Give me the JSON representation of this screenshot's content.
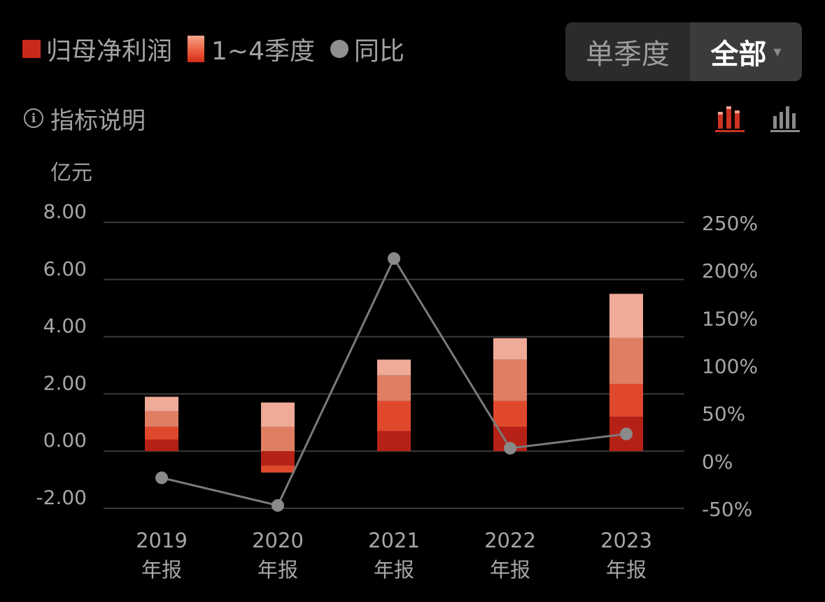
{
  "legend": {
    "net_profit": "归母净利润",
    "quarters": "1~4季度",
    "yoy": "同比"
  },
  "segment": {
    "single_quarter": "单季度",
    "all": "全部",
    "caret": "▾"
  },
  "info": {
    "icon_glyph": "i",
    "label": "指标说明"
  },
  "icons": {
    "info": "info-circle-icon",
    "stacked_view": "stacked-bar-chart-icon",
    "grouped_view": "grouped-bar-chart-icon",
    "dropdown": "caret-down-icon"
  },
  "colors": {
    "background": "#000000",
    "q1": "#b52117",
    "q2": "#e0482c",
    "q3": "#e07e63",
    "q4": "#f0aa98",
    "line": "#7a7a7a",
    "marker": "#8a8a8a",
    "grid": "#3a3a3a",
    "active_icon": "#cc3322",
    "inactive_icon": "#8a8a8a"
  },
  "chart_data": {
    "type": "bar",
    "stacked": true,
    "unit_label": "亿元",
    "categories": [
      "2019\n年报",
      "2020\n年报",
      "2021\n年报",
      "2022\n年报",
      "2023\n年报"
    ],
    "left_axis": {
      "ticks": [
        "8.00",
        "6.00",
        "4.00",
        "2.00",
        "0.00",
        "-2.00"
      ],
      "ylim": [
        -2,
        8
      ]
    },
    "right_axis": {
      "ticks": [
        "250%",
        "200%",
        "150%",
        "100%",
        "50%",
        "0%",
        "-50%"
      ],
      "ylim": [
        -50,
        250
      ]
    },
    "series": [
      {
        "name": "Q1",
        "values": [
          0.4,
          -0.5,
          0.7,
          0.85,
          1.2
        ]
      },
      {
        "name": "Q2",
        "values": [
          0.45,
          -0.25,
          1.05,
          0.9,
          1.15
        ]
      },
      {
        "name": "Q3",
        "values": [
          0.55,
          0.85,
          0.9,
          1.45,
          1.6
        ]
      },
      {
        "name": "Q4",
        "values": [
          0.5,
          0.85,
          0.55,
          0.75,
          1.55
        ]
      }
    ],
    "line": {
      "name": "同比",
      "axis": "right",
      "values": [
        -18,
        -47,
        212,
        13,
        28
      ]
    },
    "grid": true,
    "legend_position": "top-left"
  }
}
